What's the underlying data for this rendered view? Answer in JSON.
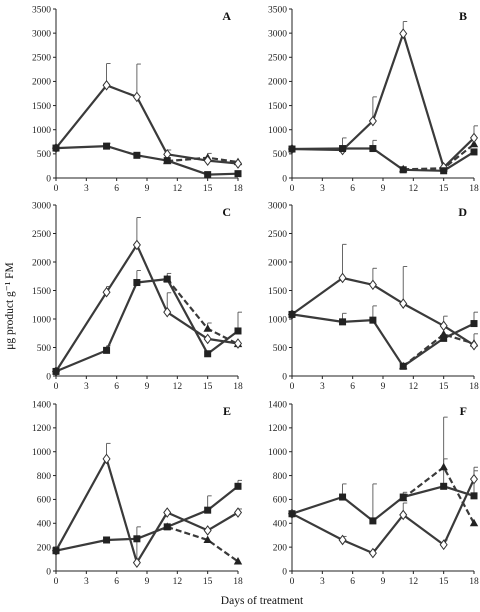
{
  "figure": {
    "ylabel": "μg product g⁻¹ FM",
    "xlabel": "Days of treatment"
  },
  "chart_data": [
    {
      "type": "line",
      "panel": "A",
      "x": [
        0,
        5,
        8,
        11,
        15,
        18
      ],
      "ylim": [
        0,
        3500
      ],
      "yticks": [
        0,
        500,
        1000,
        1500,
        2000,
        2500,
        3000,
        3500
      ],
      "xticks": [
        0,
        3,
        6,
        9,
        12,
        15,
        18
      ],
      "series": [
        {
          "marker": "diamond-open",
          "style": "solid",
          "values": [
            620,
            1920,
            1680,
            490,
            360,
            300
          ],
          "err": [
            0,
            450,
            680,
            90,
            0,
            0
          ]
        },
        {
          "marker": "triangle",
          "style": "dashed",
          "values": [
            null,
            null,
            null,
            350,
            420,
            330
          ],
          "err": [
            0,
            0,
            0,
            0,
            90,
            0
          ]
        },
        {
          "marker": "square",
          "style": "solid",
          "values": [
            620,
            660,
            470,
            360,
            70,
            90
          ],
          "err": [
            0,
            60,
            0,
            0,
            0,
            0
          ]
        }
      ]
    },
    {
      "type": "line",
      "panel": "B",
      "x": [
        0,
        5,
        8,
        11,
        15,
        18
      ],
      "ylim": [
        0,
        3500
      ],
      "yticks": [
        0,
        500,
        1000,
        1500,
        2000,
        2500,
        3000,
        3500
      ],
      "xticks": [
        0,
        3,
        6,
        9,
        12,
        15,
        18
      ],
      "series": [
        {
          "marker": "diamond-open",
          "style": "solid",
          "values": [
            600,
            580,
            1180,
            2990,
            220,
            830
          ],
          "err": [
            0,
            250,
            500,
            250,
            0,
            250
          ]
        },
        {
          "marker": "triangle",
          "style": "dashed",
          "values": [
            null,
            null,
            null,
            180,
            200,
            700
          ],
          "err": [
            0,
            0,
            0,
            0,
            0,
            0
          ]
        },
        {
          "marker": "square",
          "style": "solid",
          "values": [
            600,
            610,
            610,
            170,
            150,
            540
          ],
          "err": [
            0,
            0,
            170,
            0,
            0,
            0
          ]
        }
      ]
    },
    {
      "type": "line",
      "panel": "C",
      "x": [
        0,
        5,
        8,
        11,
        15,
        18
      ],
      "ylim": [
        0,
        3000
      ],
      "yticks": [
        0,
        500,
        1000,
        1500,
        2000,
        2500,
        3000
      ],
      "xticks": [
        0,
        3,
        6,
        9,
        12,
        15,
        18
      ],
      "series": [
        {
          "marker": "diamond-open",
          "style": "solid",
          "values": [
            80,
            1470,
            2300,
            1120,
            650,
            570
          ],
          "err": [
            0,
            100,
            480,
            340,
            0,
            0
          ]
        },
        {
          "marker": "triangle",
          "style": "dashed",
          "values": [
            null,
            null,
            null,
            1700,
            830,
            560
          ],
          "err": [
            0,
            0,
            0,
            0,
            100,
            0
          ]
        },
        {
          "marker": "square",
          "style": "solid",
          "values": [
            80,
            450,
            1640,
            1700,
            390,
            790
          ],
          "err": [
            0,
            80,
            210,
            100,
            0,
            330
          ]
        }
      ]
    },
    {
      "type": "line",
      "panel": "D",
      "x": [
        0,
        5,
        8,
        11,
        15,
        18
      ],
      "ylim": [
        0,
        3000
      ],
      "yticks": [
        0,
        500,
        1000,
        1500,
        2000,
        2500,
        3000
      ],
      "xticks": [
        0,
        3,
        6,
        9,
        12,
        15,
        18
      ],
      "series": [
        {
          "marker": "diamond-open",
          "style": "solid",
          "values": [
            1080,
            1720,
            1600,
            1270,
            880,
            540
          ],
          "err": [
            0,
            590,
            290,
            650,
            170,
            200
          ]
        },
        {
          "marker": "triangle",
          "style": "dashed",
          "values": [
            null,
            null,
            null,
            170,
            730,
            570
          ],
          "err": [
            0,
            0,
            0,
            0,
            0,
            0
          ]
        },
        {
          "marker": "square",
          "style": "solid",
          "values": [
            1080,
            950,
            980,
            170,
            660,
            920
          ],
          "err": [
            0,
            150,
            250,
            0,
            0,
            200
          ]
        }
      ]
    },
    {
      "type": "line",
      "panel": "E",
      "x": [
        0,
        5,
        8,
        11,
        15,
        18
      ],
      "ylim": [
        0,
        1400
      ],
      "yticks": [
        0,
        200,
        400,
        600,
        800,
        1000,
        1200,
        1400
      ],
      "xticks": [
        0,
        3,
        6,
        9,
        12,
        15,
        18
      ],
      "series": [
        {
          "marker": "diamond-open",
          "style": "solid",
          "values": [
            170,
            940,
            70,
            490,
            340,
            490
          ],
          "err": [
            0,
            130,
            300,
            0,
            0,
            30
          ]
        },
        {
          "marker": "triangle",
          "style": "dashed",
          "values": [
            null,
            null,
            null,
            370,
            260,
            80
          ],
          "err": [
            0,
            0,
            0,
            0,
            0,
            0
          ]
        },
        {
          "marker": "square",
          "style": "solid",
          "values": [
            170,
            260,
            270,
            370,
            510,
            710
          ],
          "err": [
            0,
            0,
            0,
            0,
            120,
            50
          ]
        }
      ]
    },
    {
      "type": "line",
      "panel": "F",
      "x": [
        0,
        5,
        8,
        11,
        15,
        18
      ],
      "ylim": [
        0,
        1400
      ],
      "yticks": [
        0,
        200,
        400,
        600,
        800,
        1000,
        1200,
        1400
      ],
      "xticks": [
        0,
        3,
        6,
        9,
        12,
        15,
        18
      ],
      "series": [
        {
          "marker": "diamond-open",
          "style": "solid",
          "values": [
            480,
            260,
            150,
            470,
            220,
            770
          ],
          "err": [
            0,
            30,
            30,
            100,
            40,
            100
          ]
        },
        {
          "marker": "triangle",
          "style": "dashed",
          "values": [
            null,
            null,
            null,
            610,
            870,
            400
          ],
          "err": [
            0,
            0,
            0,
            0,
            420,
            0
          ]
        },
        {
          "marker": "square",
          "style": "solid",
          "values": [
            480,
            620,
            420,
            620,
            710,
            630
          ],
          "err": [
            0,
            110,
            310,
            40,
            230,
            210
          ]
        }
      ]
    }
  ]
}
